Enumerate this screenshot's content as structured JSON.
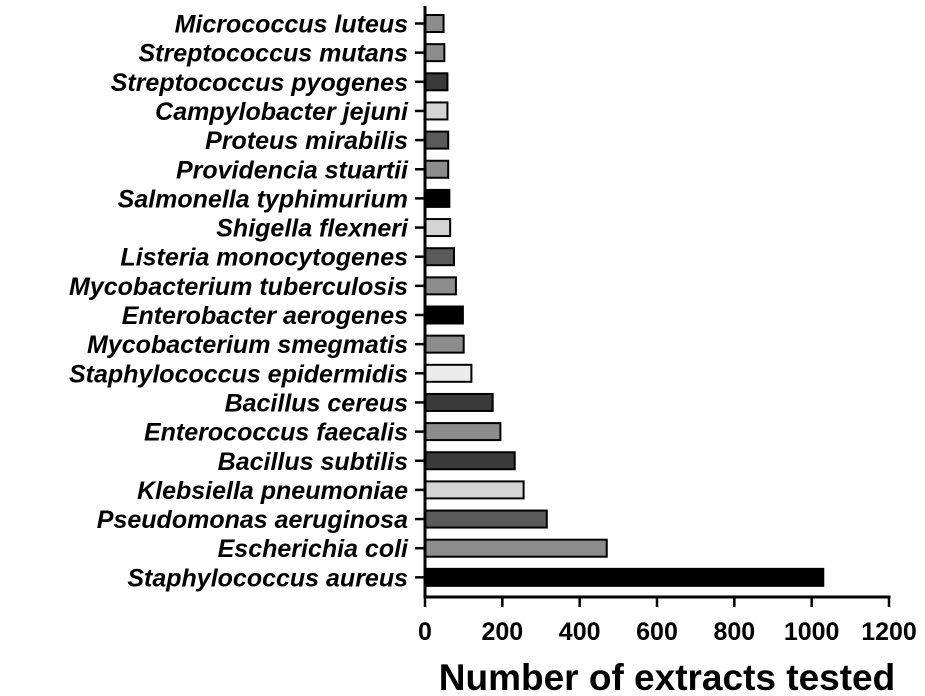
{
  "chart_data": {
    "type": "bar",
    "orientation": "horizontal",
    "title": "",
    "xlabel": "Number of extracts tested",
    "ylabel": "",
    "xlim": [
      0,
      1200
    ],
    "xticks": [
      0,
      200,
      400,
      600,
      800,
      1000,
      1200
    ],
    "grid": false,
    "categories": [
      "Micrococcus luteus",
      "Streptococcus mutans",
      "Streptococcus pyogenes",
      "Campylobacter jejuni",
      "Proteus mirabilis",
      "Providencia stuartii",
      "Salmonella typhimurium",
      "Shigella flexneri",
      "Listeria monocytogenes",
      "Mycobacterium tuberculosis",
      "Enterobacter aerogenes",
      "Mycobacterium smegmatis",
      "Staphylococcus epidermidis",
      "Bacillus cereus",
      "Enterococcus faecalis",
      "Bacillus subtilis",
      "Klebsiella pneumoniae",
      "Pseudomonas aeruginosa",
      "Escherichia coli",
      "Staphylococcus aureus"
    ],
    "values": [
      48,
      50,
      58,
      58,
      60,
      60,
      63,
      65,
      75,
      80,
      98,
      100,
      120,
      175,
      195,
      232,
      255,
      315,
      470,
      1030
    ],
    "bar_colors": [
      "#8c8c8c",
      "#8c8c8c",
      "#3a3a3a",
      "#d4d4d4",
      "#5a5a5a",
      "#8c8c8c",
      "#000000",
      "#d4d4d4",
      "#5a5a5a",
      "#8c8c8c",
      "#000000",
      "#8c8c8c",
      "#ececec",
      "#3a3a3a",
      "#8c8c8c",
      "#3a3a3a",
      "#d4d4d4",
      "#5a5a5a",
      "#8c8c8c",
      "#000000"
    ]
  }
}
